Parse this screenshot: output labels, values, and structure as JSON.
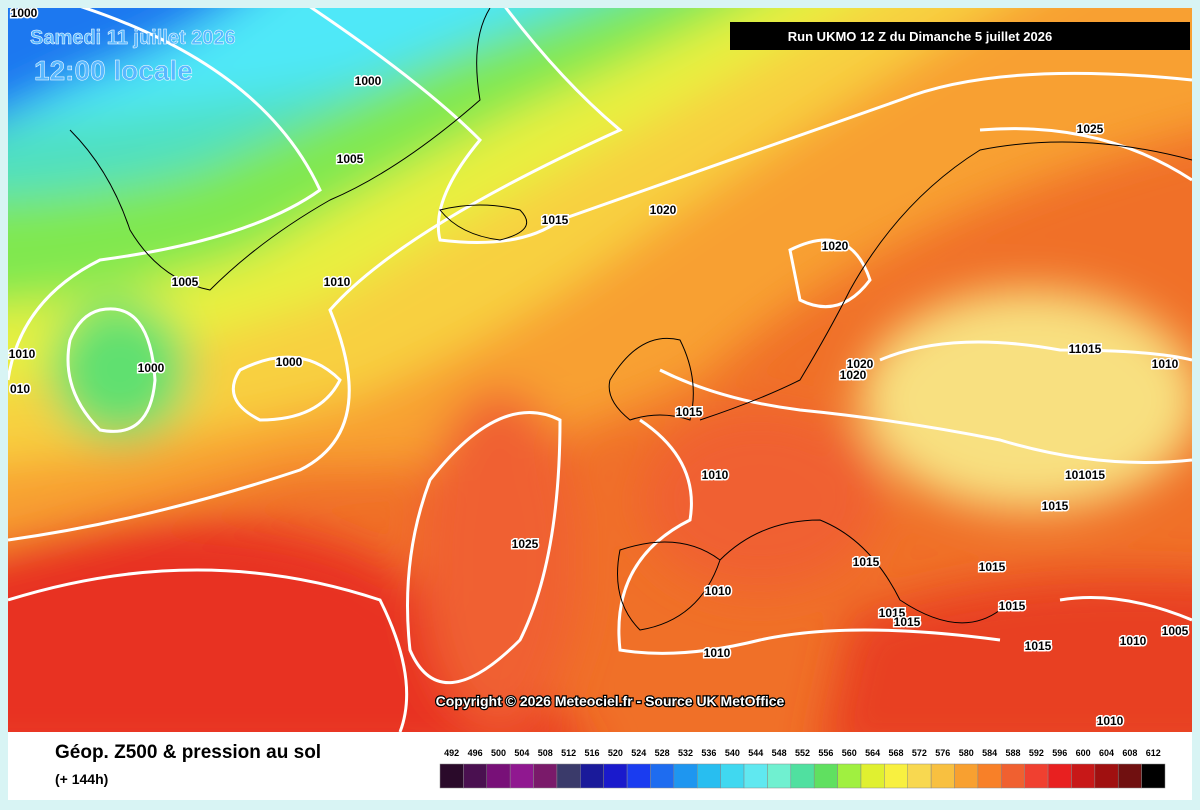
{
  "header": {
    "date": "Samedi 11 juillet 2026",
    "time": "12:00 locale",
    "run": "Run UKMO 12 Z du Dimanche 5 juillet 2026"
  },
  "copyright": "Copyright © 2026 Meteociel.fr - Source UK MetOffice",
  "map": {
    "labels": [
      "1000",
      "1000",
      "1005",
      "1015",
      "1020",
      "1025",
      "1020",
      "1005",
      "1010",
      "1010",
      "010",
      "1000",
      "1000",
      "1020",
      "1020",
      "11015",
      "1010",
      "1015",
      "1010",
      "101015",
      "1015",
      "1025",
      "1015",
      "1015",
      "1010",
      "1015",
      "1015",
      "1015",
      "1015",
      "1010",
      "1005",
      "1010",
      "1010"
    ]
  },
  "footer": {
    "title": "Géop. Z500 & pression au sol",
    "lead": "(+ 144h)"
  },
  "legend": {
    "values": [
      492,
      496,
      500,
      504,
      508,
      512,
      516,
      520,
      524,
      528,
      532,
      536,
      540,
      544,
      548,
      552,
      556,
      560,
      564,
      568,
      572,
      576,
      580,
      584,
      588,
      592,
      596,
      600,
      604,
      608,
      612
    ],
    "colors": [
      "#2a0a2a",
      "#4a1050",
      "#781078",
      "#901890",
      "#7a1a6a",
      "#3a3a6a",
      "#1a1a9a",
      "#1a1acc",
      "#1a3cf0",
      "#1e6cf0",
      "#1e96f0",
      "#28bef0",
      "#40d8f0",
      "#60e8f0",
      "#70f0d0",
      "#50e0a0",
      "#60e060",
      "#a0f040",
      "#e0f030",
      "#f8f040",
      "#f8d850",
      "#f8c040",
      "#f8a030",
      "#f88028",
      "#f06030",
      "#f04030",
      "#e82020",
      "#c81818",
      "#a01010",
      "#701010",
      "#000000"
    ]
  }
}
